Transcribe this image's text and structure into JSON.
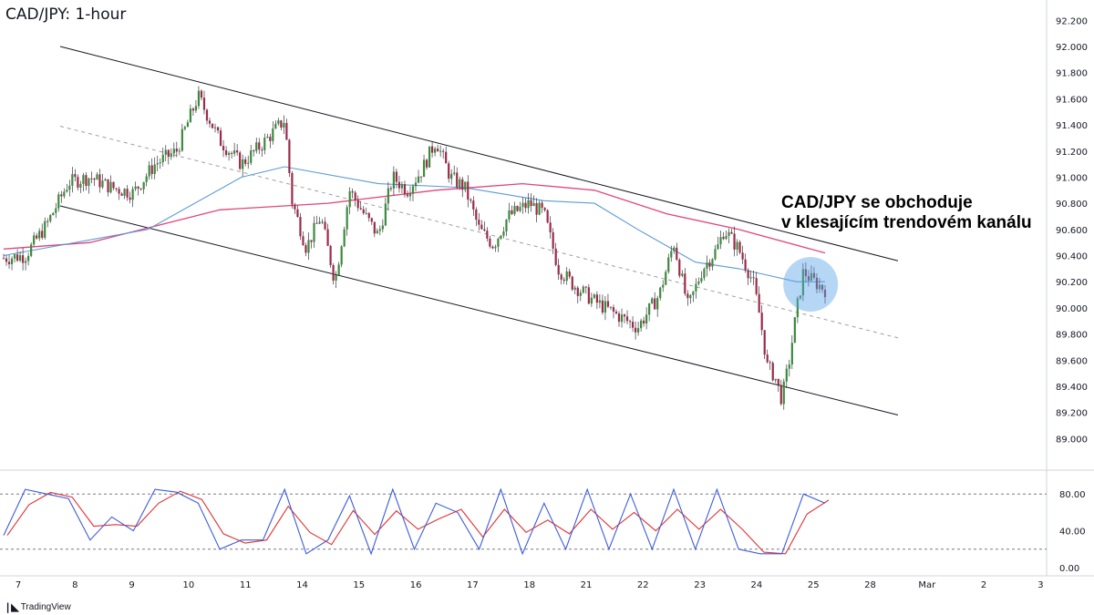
{
  "chart_title": "CAD/JPY: 1-hour",
  "annotation": {
    "line1": "CAD/JPY se obchoduje",
    "line2": "v klesajícím trendovém kanálu"
  },
  "brand": "TradingView",
  "colors": {
    "up": "#3c8a3c",
    "down": "#9c2a4a",
    "ma_fast": "#5b9bd5",
    "ma_slow": "#e0457b",
    "stoch_k": "#3b5bdb",
    "stoch_d": "#e03131",
    "highlight": "#5ba3e6"
  },
  "chart_data": {
    "type": "line",
    "price_axis": {
      "ticks": [
        "92.200",
        "92.000",
        "91.800",
        "91.600",
        "91.400",
        "91.200",
        "91.000",
        "90.800",
        "90.600",
        "90.400",
        "90.200",
        "90.000",
        "89.800",
        "89.600",
        "89.400",
        "89.200",
        "89.000"
      ],
      "range": [
        88.8,
        92.3
      ]
    },
    "oscillator_axis": {
      "ticks": [
        "80.00",
        "40.00",
        "0.00"
      ],
      "levels": [
        80,
        20
      ],
      "range": [
        -5,
        100
      ]
    },
    "x_ticks": [
      "7",
      "8",
      "9",
      "10",
      "11",
      "14",
      "15",
      "16",
      "17",
      "18",
      "21",
      "22",
      "23",
      "24",
      "25",
      "28",
      "Mar",
      "2",
      "3"
    ],
    "price_path": [
      [
        0,
        90.38
      ],
      [
        3,
        90.4
      ],
      [
        6,
        90.64
      ],
      [
        9,
        90.96
      ],
      [
        12,
        91.0
      ],
      [
        15,
        90.92
      ],
      [
        18,
        90.88
      ],
      [
        21,
        91.1
      ],
      [
        24,
        91.2
      ],
      [
        27,
        91.62
      ],
      [
        30,
        91.28
      ],
      [
        33,
        91.1
      ],
      [
        36,
        91.26
      ],
      [
        39,
        91.44
      ],
      [
        40,
        90.82
      ],
      [
        42,
        90.46
      ],
      [
        44,
        90.7
      ],
      [
        46,
        90.2
      ],
      [
        48,
        90.9
      ],
      [
        50,
        90.72
      ],
      [
        52,
        90.55
      ],
      [
        54,
        91.0
      ],
      [
        56,
        90.9
      ],
      [
        58,
        91.05
      ],
      [
        60,
        91.28
      ],
      [
        62,
        91.0
      ],
      [
        64,
        90.92
      ],
      [
        66,
        90.6
      ],
      [
        68,
        90.48
      ],
      [
        70,
        90.7
      ],
      [
        73,
        90.8
      ],
      [
        75,
        90.72
      ],
      [
        77,
        90.3
      ],
      [
        79,
        90.18
      ],
      [
        82,
        90.05
      ],
      [
        85,
        89.95
      ],
      [
        88,
        89.85
      ],
      [
        91,
        90.1
      ],
      [
        93,
        90.5
      ],
      [
        95,
        90.0
      ],
      [
        97,
        90.3
      ],
      [
        99,
        90.45
      ],
      [
        100,
        90.6
      ],
      [
        102,
        90.45
      ],
      [
        104,
        90.2
      ],
      [
        105,
        89.92
      ],
      [
        106,
        89.55
      ],
      [
        107,
        89.48
      ],
      [
        108,
        89.3
      ],
      [
        109,
        89.58
      ],
      [
        110,
        89.96
      ],
      [
        111,
        90.28
      ],
      [
        112,
        90.22
      ],
      [
        113,
        90.18
      ],
      [
        114,
        90.14
      ]
    ],
    "channel": {
      "upper": [
        [
          0,
          92.0
        ],
        [
          114,
          90.36
        ]
      ],
      "lower": [
        [
          0,
          90.78
        ],
        [
          114,
          89.18
        ]
      ],
      "mid": [
        [
          0,
          91.39
        ],
        [
          114,
          89.77
        ]
      ]
    },
    "ma_fast_path": [
      [
        0,
        90.4
      ],
      [
        20,
        90.6
      ],
      [
        33,
        91.0
      ],
      [
        39,
        91.08
      ],
      [
        52,
        90.95
      ],
      [
        64,
        90.92
      ],
      [
        75,
        90.82
      ],
      [
        82,
        90.8
      ],
      [
        88,
        90.6
      ],
      [
        96,
        90.35
      ],
      [
        102,
        90.3
      ],
      [
        106,
        90.25
      ],
      [
        110,
        90.2
      ],
      [
        114,
        90.2
      ]
    ],
    "ma_slow_path": [
      [
        0,
        90.45
      ],
      [
        12,
        90.5
      ],
      [
        30,
        90.75
      ],
      [
        45,
        90.8
      ],
      [
        60,
        90.9
      ],
      [
        72,
        90.95
      ],
      [
        82,
        90.9
      ],
      [
        92,
        90.72
      ],
      [
        102,
        90.6
      ],
      [
        114,
        90.42
      ]
    ],
    "stoch_k": [
      [
        0,
        35
      ],
      [
        3,
        85
      ],
      [
        6,
        80
      ],
      [
        9,
        75
      ],
      [
        12,
        30
      ],
      [
        15,
        55
      ],
      [
        18,
        40
      ],
      [
        21,
        85
      ],
      [
        24,
        82
      ],
      [
        27,
        70
      ],
      [
        30,
        20
      ],
      [
        33,
        30
      ],
      [
        36,
        30
      ],
      [
        39,
        85
      ],
      [
        42,
        15
      ],
      [
        45,
        30
      ],
      [
        48,
        78
      ],
      [
        51,
        15
      ],
      [
        54,
        85
      ],
      [
        57,
        20
      ],
      [
        60,
        70
      ],
      [
        63,
        60
      ],
      [
        66,
        20
      ],
      [
        69,
        85
      ],
      [
        72,
        15
      ],
      [
        75,
        70
      ],
      [
        78,
        20
      ],
      [
        81,
        85
      ],
      [
        84,
        20
      ],
      [
        87,
        80
      ],
      [
        90,
        20
      ],
      [
        93,
        85
      ],
      [
        96,
        20
      ],
      [
        99,
        85
      ],
      [
        102,
        20
      ],
      [
        105,
        15
      ],
      [
        108,
        15
      ],
      [
        111,
        80
      ],
      [
        114,
        70
      ]
    ],
    "highlight_circle": {
      "center": [
        112,
        90.18
      ]
    }
  }
}
